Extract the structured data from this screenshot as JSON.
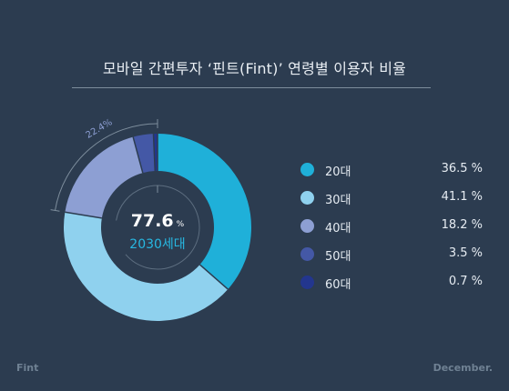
{
  "title": "모바일 간편투자 ‘핀트(Fint)’ 연령별 이용자 비율",
  "center": {
    "value": "77.6",
    "unit": "%",
    "label": "2030세대"
  },
  "bracket_label": "22.4%",
  "footer": {
    "left": "Fint",
    "right": "December."
  },
  "legend": [
    {
      "label": "20대",
      "value": "36.5 %",
      "color": "#1fb0d9"
    },
    {
      "label": "30대",
      "value": "41.1 %",
      "color": "#8fd1ee"
    },
    {
      "label": "40대",
      "value": "18.2 %",
      "color": "#8d9fd3"
    },
    {
      "label": "50대",
      "value": "3.5 %",
      "color": "#4458a6"
    },
    {
      "label": "60대",
      "value": "0.7 %",
      "color": "#23368e"
    }
  ],
  "chart_data": {
    "type": "pie",
    "title": "모바일 간편투자 ‘핀트(Fint)’ 연령별 이용자 비율",
    "categories": [
      "20대",
      "30대",
      "40대",
      "50대",
      "60대"
    ],
    "values": [
      36.5,
      41.1,
      18.2,
      3.5,
      0.7
    ],
    "colors": [
      "#1fb0d9",
      "#8fd1ee",
      "#8d9fd3",
      "#4458a6",
      "#23368e"
    ],
    "legend": "right",
    "annotations": [
      "77.6%",
      "2030세대",
      "22.4%"
    ]
  }
}
